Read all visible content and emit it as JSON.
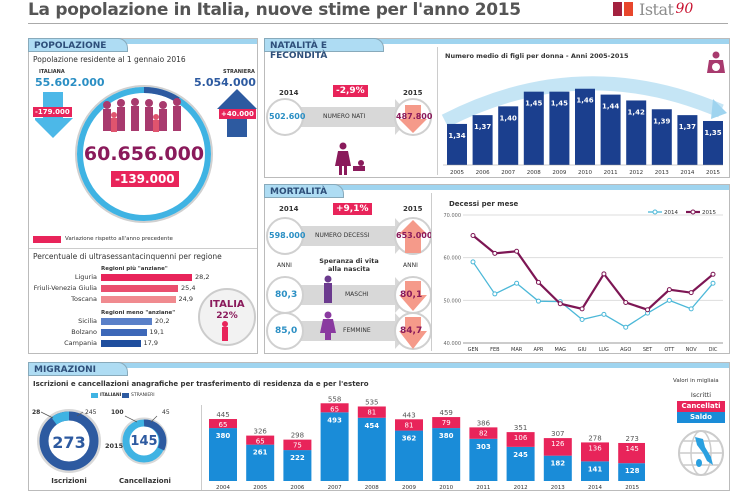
{
  "header": {
    "title": "La popolazione in Italia, nuove stime per l'anno 2015",
    "logo_text": "Istat",
    "logo_num": "90"
  },
  "popolazione": {
    "section": "POPOLAZIONE",
    "subtitle": "Popolazione residente al 1 gennaio 2016",
    "italiana_label": "ITALIANA",
    "italiana_value": "55.602.000",
    "italiana_change": "-179.000",
    "straniera_label": "STRANIERA",
    "straniera_value": "5.054.000",
    "straniera_change": "+40.000",
    "total": "60.656.000",
    "total_change": "-139.000",
    "legend": "Variazione rispetto all'anno precedente",
    "regions_title": "Percentuale di ultrasessantacinquenni per regione",
    "old_header": "Regioni più \"anziane\"",
    "young_header": "Regioni meno \"anziane\"",
    "old": [
      {
        "name": "Liguria",
        "value": "28,2",
        "num": 28.2
      },
      {
        "name": "Friuli-Venezia Giulia",
        "value": "25,4",
        "num": 25.4
      },
      {
        "name": "Toscana",
        "value": "24,9",
        "num": 24.9
      }
    ],
    "young": [
      {
        "name": "Sicilia",
        "value": "20,2",
        "num": 20.2
      },
      {
        "name": "Bolzano",
        "value": "19,1",
        "num": 19.1
      },
      {
        "name": "Campania",
        "value": "17,9",
        "num": 17.9
      }
    ],
    "italia_label": "ITALIA",
    "italia_value": "22%"
  },
  "natalita": {
    "section": "NATALITÀ E FECONDITÀ",
    "year_a": "2014",
    "year_b": "2015",
    "value_a": "502.600",
    "value_b": "487.800",
    "change": "-2,9%",
    "label": "NUMERO NATI"
  },
  "mortalita": {
    "section": "MORTALITÀ",
    "year_a": "2014",
    "year_b": "2015",
    "value_a": "598.000",
    "value_b": "653.000",
    "change": "+9,1%",
    "label": "NUMERO DECESSI",
    "anni": "ANNI",
    "speranza": "Speranza di vita",
    "alla_nascita": "alla nascita",
    "maschi_label": "MASCHI",
    "maschi_a": "80,3",
    "maschi_b": "80,1",
    "femmine_label": "FEMMINE",
    "femmine_a": "85,0",
    "femmine_b": "84,7"
  },
  "migrazioni": {
    "section": "MIGRAZIONI",
    "subtitle": "Iscrizioni e cancellazioni anagrafiche per trasferimento di residenza da e per l'estero",
    "legend_italiani": "ITALIANI",
    "legend_stranieri": "STRANIERI",
    "iscrizioni": {
      "total": "273",
      "italiani": "28",
      "stranieri": "245",
      "label": "Iscrizioni"
    },
    "cancellazioni": {
      "total": "145",
      "italiani": "100",
      "stranieri": "45",
      "label": "Cancellazioni"
    },
    "year": "2015",
    "unit_note": "Valori in migliaia",
    "key_iscritti": "Iscritti",
    "key_cancellati": "Cancellati",
    "key_saldo": "Saldo"
  },
  "chart_data": [
    {
      "type": "bar",
      "title": "Numero medio di figli per donna - Anni 2005-2015",
      "categories": [
        "2005",
        "2006",
        "2007",
        "2008",
        "2009",
        "2010",
        "2011",
        "2012",
        "2013",
        "2014",
        "2015"
      ],
      "values": [
        1.34,
        1.37,
        1.4,
        1.45,
        1.45,
        1.46,
        1.44,
        1.42,
        1.39,
        1.37,
        1.35
      ],
      "labels": [
        "1,34",
        "1,37",
        "1,40",
        "1,45",
        "1,45",
        "1,46",
        "1,44",
        "1,42",
        "1,39",
        "1,37",
        "1,35"
      ],
      "ylim": [
        1.2,
        1.5
      ]
    },
    {
      "type": "line",
      "title": "Decessi per mese",
      "categories": [
        "GEN",
        "FEB",
        "MAR",
        "APR",
        "MAG",
        "GIU",
        "LUG",
        "AGO",
        "SET",
        "OTT",
        "NOV",
        "DIC"
      ],
      "series": [
        {
          "name": "2014",
          "color": "#4cb8d8",
          "values": [
            59000,
            51500,
            54000,
            49800,
            49700,
            45500,
            46700,
            43700,
            47000,
            50000,
            48000,
            54000
          ]
        },
        {
          "name": "2015",
          "color": "#7d1654",
          "values": [
            65200,
            61000,
            61500,
            54200,
            49200,
            48000,
            56200,
            49500,
            47800,
            52500,
            51800,
            56100
          ]
        }
      ],
      "yticks": [
        "40.000",
        "50.000",
        "60.000",
        "70.000"
      ],
      "ytick_values": [
        40000,
        50000,
        60000,
        70000
      ],
      "ylim": [
        40000,
        70000
      ],
      "legend": "top-right"
    },
    {
      "type": "bar",
      "title": "Iscrizioni e cancellazioni (migliaia)",
      "categories": [
        "2004",
        "2005",
        "2006",
        "2007",
        "2008",
        "2009",
        "2010",
        "2011",
        "2012",
        "2013",
        "2014",
        "2015"
      ],
      "series": [
        {
          "name": "Saldo",
          "color": "#1a8cd8",
          "values": [
            380,
            261,
            222,
            493,
            454,
            362,
            380,
            303,
            245,
            182,
            141,
            128
          ]
        },
        {
          "name": "Cancellati",
          "color": "#e8245a",
          "values": [
            65,
            65,
            75,
            65,
            81,
            81,
            79,
            82,
            106,
            126,
            136,
            145
          ]
        }
      ],
      "totals": [
        445,
        326,
        298,
        558,
        535,
        443,
        459,
        386,
        351,
        307,
        278,
        273
      ],
      "ylim": [
        0,
        560
      ]
    }
  ]
}
